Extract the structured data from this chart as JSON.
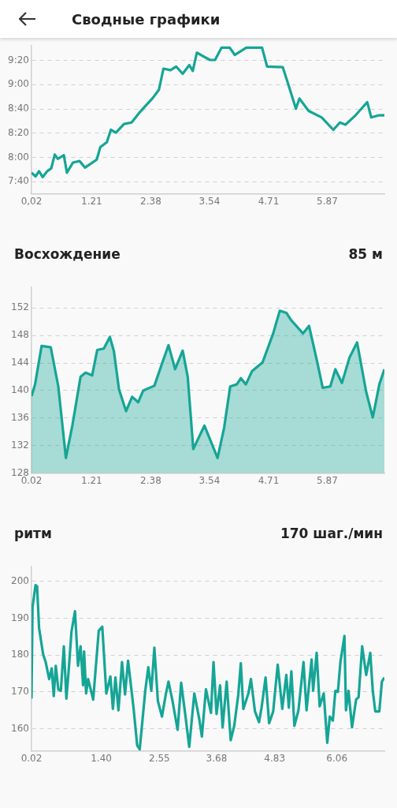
{
  "chart_data": [
    {
      "type": "line",
      "title": "Сводные графики",
      "xlim": [
        0.02,
        7.0
      ],
      "ylim": [
        7.5,
        9.533
      ],
      "xticks": [
        {
          "value": 0.02,
          "label": "0,02"
        },
        1.21,
        2.38,
        3.54,
        4.71,
        5.87
      ],
      "yticks": [
        {
          "value": 7.6667,
          "label": "7:40"
        },
        {
          "value": 8,
          "label": "8:00"
        },
        {
          "value": 8.3333,
          "label": "8:20"
        },
        {
          "value": 8.6667,
          "label": "8:40"
        },
        {
          "value": 9,
          "label": "9:00"
        },
        {
          "value": 9.3333,
          "label": "9:20"
        }
      ],
      "grid": "y",
      "marker": "none",
      "series": [
        {
          "color": "#15a596",
          "x": [
            0.02,
            0.1,
            0.17,
            0.24,
            0.33,
            0.41,
            0.48,
            0.54,
            0.66,
            0.72,
            0.84,
            0.97,
            1.08,
            1.31,
            1.38,
            1.51,
            1.59,
            1.69,
            1.85,
            2.0,
            2.16,
            2.29,
            2.41,
            2.54,
            2.63,
            2.77,
            2.88,
            3.01,
            3.14,
            3.21,
            3.29,
            3.55,
            3.65,
            3.78,
            3.94,
            4.04,
            4.27,
            4.58,
            4.68,
            4.99,
            5.07,
            5.25,
            5.32,
            5.5,
            5.76,
            5.99,
            6.12,
            6.23,
            6.43,
            6.66,
            6.74,
            6.9,
            7.0
          ],
          "values": [
            7.79,
            7.74,
            7.81,
            7.73,
            7.81,
            7.85,
            8.04,
            7.98,
            8.03,
            7.79,
            7.93,
            7.95,
            7.86,
            7.97,
            8.14,
            8.21,
            8.38,
            8.34,
            8.46,
            8.48,
            8.62,
            8.72,
            8.81,
            8.93,
            9.22,
            9.2,
            9.25,
            9.15,
            9.27,
            9.19,
            9.44,
            9.34,
            9.34,
            9.51,
            9.51,
            9.41,
            9.51,
            9.51,
            9.25,
            9.24,
            9.07,
            8.67,
            8.81,
            8.64,
            8.55,
            8.38,
            8.48,
            8.45,
            8.58,
            8.76,
            8.55,
            8.58,
            8.58
          ]
        }
      ]
    },
    {
      "type": "area",
      "title": "Восхождение",
      "subtitle": "85 м",
      "xlim": [
        0.02,
        7.0
      ],
      "ylim": [
        128,
        155
      ],
      "xticks": [
        0.02,
        1.21,
        2.38,
        3.54,
        4.71,
        5.87
      ],
      "yticks": [
        128,
        132,
        136,
        140,
        144,
        148,
        152
      ],
      "grid": "y",
      "marker": "none",
      "series": [
        {
          "color": "#15a596",
          "x": [
            0.02,
            0.09,
            0.22,
            0.4,
            0.55,
            0.7,
            0.83,
            0.99,
            1.09,
            1.22,
            1.32,
            1.45,
            1.57,
            1.65,
            1.75,
            1.89,
            2.01,
            2.13,
            2.23,
            2.45,
            2.6,
            2.73,
            2.86,
            3.01,
            3.11,
            3.22,
            3.44,
            3.7,
            3.83,
            3.95,
            4.08,
            4.16,
            4.26,
            4.38,
            4.59,
            4.8,
            4.93,
            5.06,
            5.16,
            5.39,
            5.51,
            5.67,
            5.78,
            5.93,
            6.03,
            6.16,
            6.31,
            6.46,
            6.64,
            6.77,
            6.9,
            7.0
          ],
          "values": [
            139.2,
            140.9,
            146.5,
            146.3,
            140.6,
            130.2,
            135.0,
            142.0,
            142.6,
            142.2,
            145.9,
            146.1,
            147.8,
            145.7,
            140.2,
            137.0,
            139.1,
            138.3,
            140.0,
            140.7,
            143.9,
            146.6,
            143.1,
            145.8,
            142.0,
            131.5,
            134.9,
            130.2,
            134.6,
            140.6,
            140.9,
            141.8,
            140.9,
            142.8,
            144.1,
            148.3,
            151.6,
            151.3,
            150.2,
            148.3,
            149.4,
            144.2,
            140.4,
            140.6,
            143.1,
            141.1,
            144.8,
            147.0,
            139.8,
            136.1,
            140.9,
            143.1
          ]
        }
      ]
    },
    {
      "type": "line",
      "title": "ритм",
      "subtitle": "170 шаг./мин",
      "xlim": [
        0.02,
        7.0
      ],
      "ylim": [
        154,
        204
      ],
      "xticks": [
        0.02,
        {
          "value": 1.4,
          "label": "1.40"
        },
        2.55,
        3.68,
        4.83,
        6.06
      ],
      "yticks": [
        160,
        170,
        180,
        190,
        200
      ],
      "grid": "y",
      "marker": "none",
      "series": [
        {
          "color": "#15a596",
          "x": [
            0.02,
            0.04,
            0.1,
            0.13,
            0.17,
            0.25,
            0.3,
            0.37,
            0.42,
            0.46,
            0.5,
            0.55,
            0.6,
            0.66,
            0.71,
            0.76,
            0.81,
            0.88,
            0.94,
            0.99,
            1.04,
            1.06,
            1.1,
            1.14,
            1.24,
            1.35,
            1.42,
            1.5,
            1.58,
            1.63,
            1.68,
            1.74,
            1.81,
            1.87,
            1.93,
            2.04,
            2.11,
            2.16,
            2.27,
            2.33,
            2.39,
            2.45,
            2.52,
            2.6,
            2.68,
            2.73,
            2.8,
            2.91,
            2.98,
            3.06,
            3.14,
            3.24,
            3.34,
            3.39,
            3.47,
            3.57,
            3.62,
            3.68,
            3.75,
            3.8,
            3.88,
            3.96,
            4.03,
            4.11,
            4.16,
            4.21,
            4.31,
            4.36,
            4.44,
            4.52,
            4.57,
            4.65,
            4.72,
            4.8,
            4.89,
            4.98,
            5.06,
            5.11,
            5.16,
            5.22,
            5.3,
            5.4,
            5.46,
            5.56,
            5.59,
            5.66,
            5.72,
            5.8,
            5.87,
            5.92,
            5.98,
            6.03,
            6.08,
            6.13,
            6.21,
            6.24,
            6.29,
            6.36,
            6.44,
            6.49,
            6.56,
            6.64,
            6.72,
            6.77,
            6.82,
            6.9,
            6.95,
            7.0
          ],
          "values": [
            168.2,
            193.0,
            199.0,
            198.7,
            187.3,
            180.2,
            178.1,
            173.5,
            176.4,
            168.9,
            177.1,
            170.7,
            170.3,
            182.4,
            168.2,
            176.7,
            186.3,
            191.9,
            177.1,
            182.4,
            171.8,
            181.0,
            169.6,
            173.5,
            167.9,
            186.6,
            187.7,
            169.6,
            174.2,
            165.4,
            173.9,
            165.0,
            178.1,
            169.3,
            178.5,
            165.4,
            155.5,
            154.4,
            170.3,
            176.7,
            170.3,
            182.0,
            167.5,
            163.3,
            169.6,
            172.8,
            168.2,
            159.7,
            172.5,
            164.0,
            155.1,
            169.6,
            162.5,
            157.9,
            170.7,
            164.3,
            178.1,
            164.0,
            171.8,
            160.4,
            172.8,
            156.9,
            160.8,
            169.3,
            177.8,
            165.4,
            169.6,
            173.5,
            164.7,
            161.8,
            165.7,
            173.9,
            161.5,
            164.7,
            177.4,
            165.4,
            174.6,
            165.7,
            175.6,
            160.8,
            165.0,
            178.1,
            165.0,
            178.8,
            170.3,
            180.6,
            166.1,
            169.6,
            156.2,
            163.3,
            162.2,
            170.3,
            170.0,
            178.1,
            185.2,
            165.0,
            170.3,
            160.4,
            167.9,
            168.6,
            182.4,
            174.6,
            180.6,
            170.3,
            164.7,
            164.7,
            172.8,
            173.9
          ]
        }
      ]
    }
  ]
}
